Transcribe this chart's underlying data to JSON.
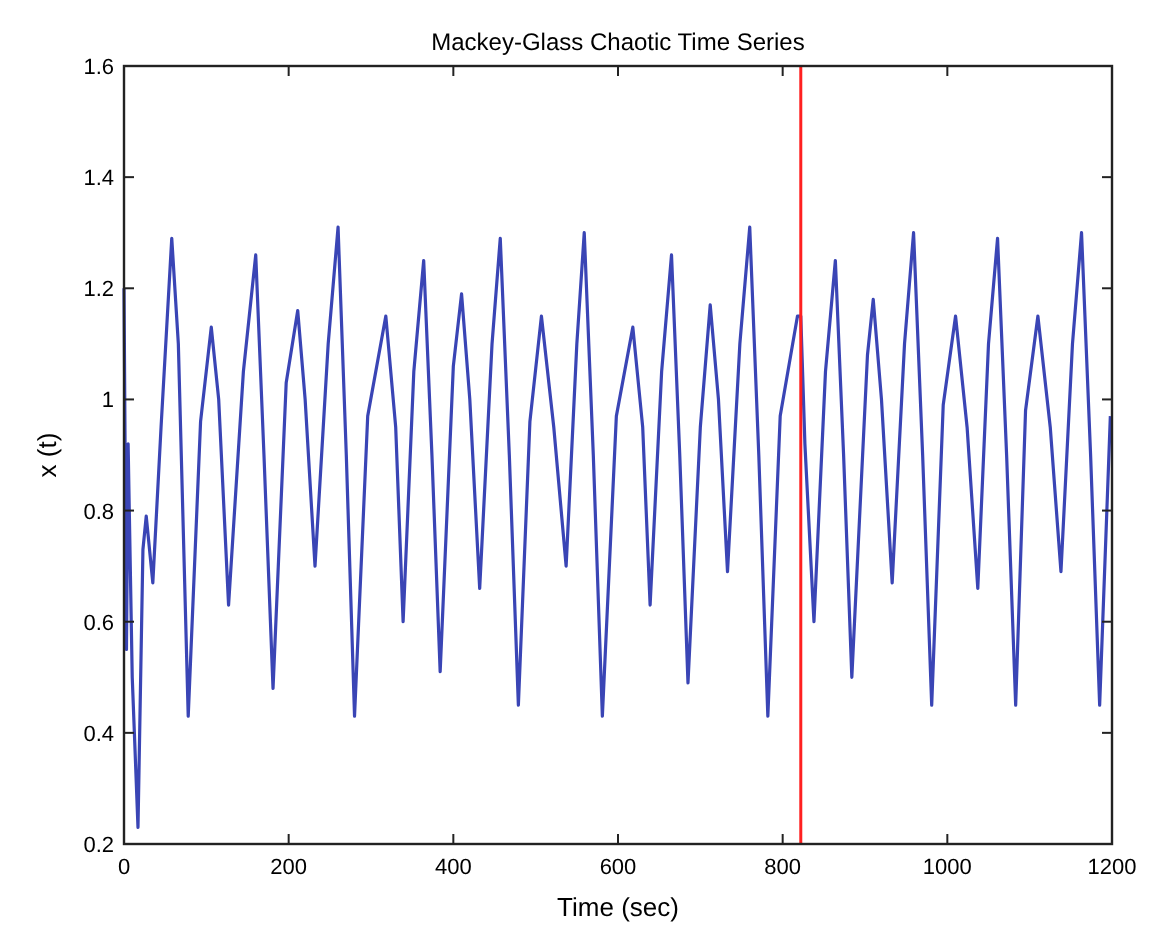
{
  "chart_data": {
    "type": "line",
    "title": "Mackey-Glass Chaotic Time Series",
    "xlabel": "Time (sec)",
    "ylabel": "x (t)",
    "xlim": [
      0,
      1200
    ],
    "xticks": [
      0,
      200,
      400,
      600,
      800,
      1000,
      1200
    ],
    "ylim": [
      0.2,
      1.6
    ],
    "yticks": [
      0.2,
      0.4,
      0.6,
      0.8,
      1,
      1.2,
      1.4,
      1.6
    ],
    "grid": false,
    "marker": "none",
    "line_style": "solid",
    "ref_lines": [
      {
        "axis": "x",
        "value": 822,
        "color": "#ff2020"
      }
    ],
    "series": [
      {
        "color": "#3a45b5",
        "x": [
          0,
          3,
          5,
          10,
          17,
          23,
          27,
          35,
          45,
          58,
          66,
          78,
          93,
          106,
          115,
          127,
          145,
          160,
          170,
          181,
          197,
          211,
          220,
          232,
          248,
          260,
          270,
          280,
          296,
          318,
          330,
          339,
          352,
          364,
          374,
          384,
          400,
          410,
          420,
          432,
          447,
          457,
          468,
          479,
          493,
          507,
          522,
          537,
          550,
          559,
          570,
          581,
          598,
          618,
          630,
          639,
          653,
          665,
          675,
          685,
          700,
          712,
          722,
          733,
          748,
          760,
          771,
          782,
          797,
          818,
          822,
          827,
          838,
          852,
          864,
          874,
          884,
          903,
          910,
          920,
          933,
          948,
          959,
          970,
          981,
          995,
          1010,
          1024,
          1037,
          1050,
          1061,
          1072,
          1083,
          1095,
          1110,
          1125,
          1138,
          1152,
          1163,
          1174,
          1185,
          1198
        ],
        "values": [
          1.2,
          0.55,
          0.92,
          0.5,
          0.23,
          0.73,
          0.79,
          0.67,
          0.95,
          1.29,
          1.1,
          0.43,
          0.96,
          1.13,
          1.0,
          0.63,
          1.05,
          1.26,
          0.9,
          0.48,
          1.03,
          1.16,
          1.0,
          0.7,
          1.1,
          1.31,
          0.9,
          0.43,
          0.97,
          1.15,
          0.95,
          0.6,
          1.05,
          1.25,
          0.9,
          0.51,
          1.06,
          1.19,
          1.0,
          0.66,
          1.1,
          1.29,
          0.9,
          0.45,
          0.96,
          1.15,
          0.95,
          0.7,
          1.1,
          1.3,
          0.9,
          0.43,
          0.97,
          1.13,
          0.95,
          0.63,
          1.05,
          1.26,
          0.9,
          0.49,
          0.95,
          1.17,
          1.0,
          0.69,
          1.1,
          1.31,
          0.9,
          0.43,
          0.97,
          1.15,
          1.15,
          0.92,
          0.6,
          1.05,
          1.25,
          0.9,
          0.5,
          1.08,
          1.18,
          1.0,
          0.67,
          1.1,
          1.3,
          0.9,
          0.45,
          0.99,
          1.15,
          0.95,
          0.66,
          1.1,
          1.29,
          0.9,
          0.45,
          0.98,
          1.15,
          0.95,
          0.69,
          1.1,
          1.3,
          0.9,
          0.45,
          0.97
        ]
      }
    ]
  }
}
